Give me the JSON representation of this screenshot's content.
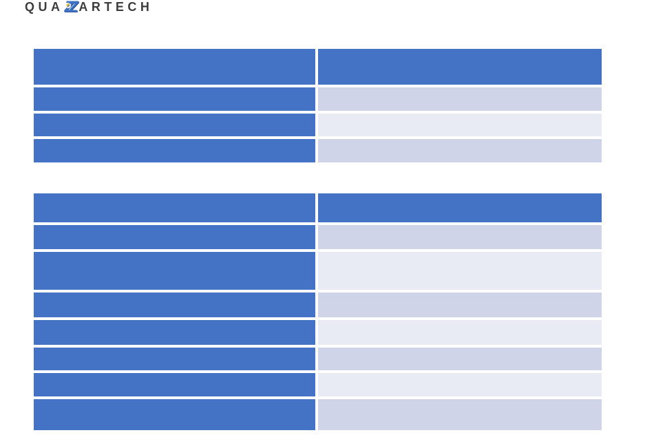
{
  "logo": {
    "prefix": "QUA",
    "mark": "ZZ",
    "suffix": "ARTECH"
  },
  "icons": {
    "lightning_bolt": "⚡"
  },
  "colors": {
    "header_blue": "#4472c4",
    "row_band_dark": "#cfd4e8",
    "row_band_light": "#e9ebf4",
    "logo_text": "#3d3d3d",
    "logo_mark_blue": "#3e74c8",
    "background": "#ffffff"
  },
  "tables": [
    {
      "name": "top-table",
      "header": [
        "",
        ""
      ],
      "rows": [
        {
          "cells": [
            "",
            ""
          ],
          "band": "dark"
        },
        {
          "cells": [
            "",
            ""
          ],
          "band": "light"
        },
        {
          "cells": [
            "",
            ""
          ],
          "band": "dark"
        }
      ]
    },
    {
      "name": "bottom-table",
      "header": [
        "",
        ""
      ],
      "rows": [
        {
          "cells": [
            "",
            ""
          ],
          "band": "dark"
        },
        {
          "cells": [
            "",
            ""
          ],
          "band": "light"
        },
        {
          "cells": [
            "",
            ""
          ],
          "band": "dark"
        },
        {
          "cells": [
            "",
            ""
          ],
          "band": "light"
        },
        {
          "cells": [
            "",
            ""
          ],
          "band": "dark"
        },
        {
          "cells": [
            "",
            ""
          ],
          "band": "light"
        },
        {
          "cells": [
            "",
            ""
          ],
          "band": "dark"
        }
      ]
    }
  ]
}
